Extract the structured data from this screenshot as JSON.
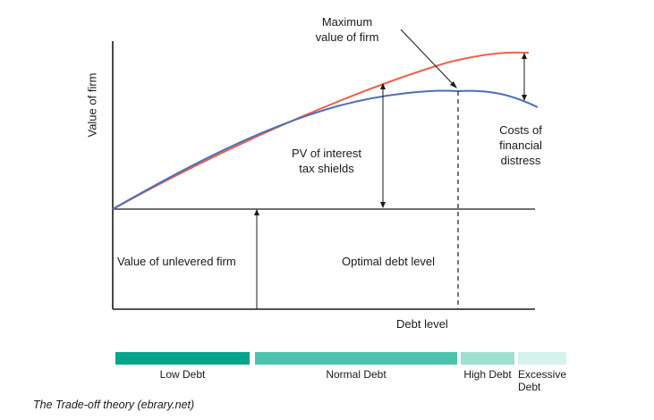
{
  "title": "",
  "axes": {
    "y_label": "Value of firm",
    "x_label": "Debt level"
  },
  "annotations": {
    "maximum_value": "Maximum\nvalue of firm",
    "pv_tax_shields": "PV of interest\ntax shields",
    "costs_distress": "Costs of\nfinancial\ndistress",
    "unlevered": "Value of unlevered firm",
    "optimal_debt": "Optimal debt level"
  },
  "zones": [
    {
      "label": "Low Debt",
      "color": "#05a58b"
    },
    {
      "label": "Normal Debt",
      "color": "#4cc3ad"
    },
    {
      "label": "High Debt",
      "color": "#9edfd2"
    },
    {
      "label": "Excessive\nDebt",
      "color": "#d6f2ec"
    }
  ],
  "colors": {
    "levered_no_distress": "#f0604a",
    "levered_with_distress": "#4b6fbb",
    "axis": "#1a1a1a"
  },
  "caption": "The Trade-off theory (ebrary.net)"
}
